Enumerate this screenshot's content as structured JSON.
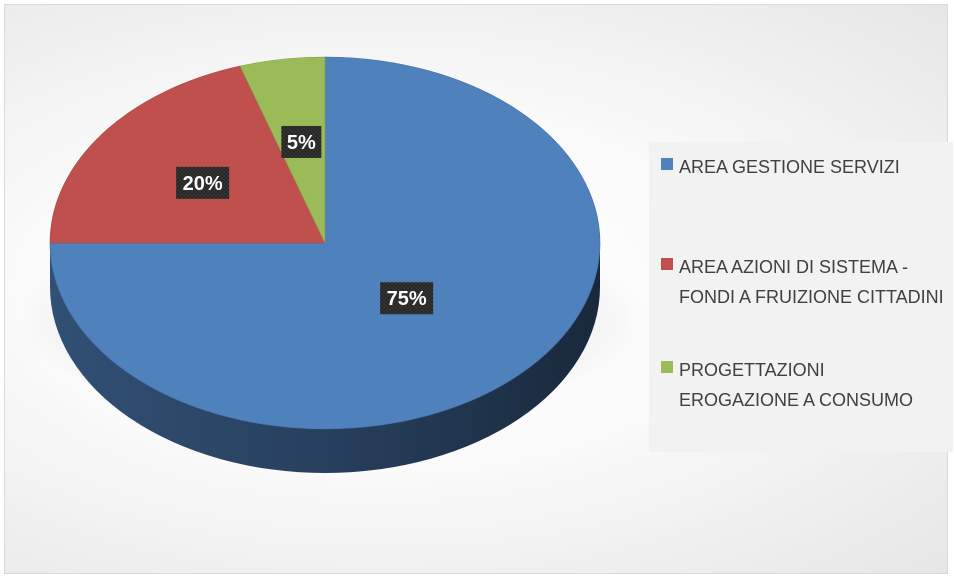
{
  "chart_data": {
    "type": "pie",
    "style": "3d",
    "categories": [
      "AREA GESTIONE SERVIZI",
      "AREA AZIONI DI SISTEMA - FONDI A FRUIZIONE CITTADINI",
      "PROGETTAZIONI EROGAZIONE A CONSUMO"
    ],
    "values": [
      75,
      20,
      5
    ],
    "data_labels": [
      "75%",
      "20%",
      "5%"
    ],
    "colors": [
      "#4f81bd",
      "#c0504d",
      "#9bbb59"
    ],
    "legend_position": "right",
    "title": ""
  },
  "legend": {
    "items": [
      {
        "label": "AREA GESTIONE SERVIZI",
        "color": "#4f81bd"
      },
      {
        "label": "AREA AZIONI DI SISTEMA - FONDI A FRUIZIONE CITTADINI",
        "color": "#c0504d"
      },
      {
        "label": "PROGETTAZIONI EROGAZIONE A CONSUMO",
        "color": "#9bbb59"
      }
    ]
  }
}
